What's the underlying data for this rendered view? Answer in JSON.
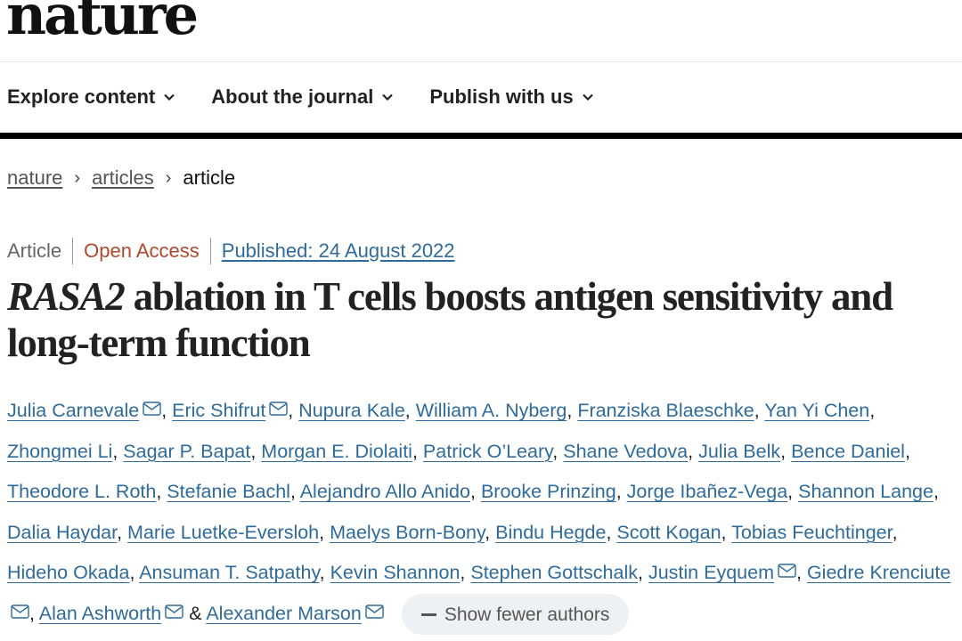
{
  "header": {
    "logo": "nature",
    "nav": [
      {
        "label": "Explore content",
        "icon": "chevron-down-icon"
      },
      {
        "label": "About the journal",
        "icon": "chevron-down-icon"
      },
      {
        "label": "Publish with us",
        "icon": "chevron-down-icon"
      }
    ]
  },
  "breadcrumb": [
    {
      "label": "nature",
      "link": true
    },
    {
      "label": "articles",
      "link": true
    },
    {
      "label": "article",
      "link": false
    }
  ],
  "article": {
    "type": "Article",
    "access": "Open Access",
    "published": "Published: 24 August 2022",
    "title_italic": "RASA2",
    "title_rest": " ablation in T cells boosts antigen sensitivity and long-term function",
    "authors": [
      {
        "name": "Julia Carnevale",
        "email": true
      },
      {
        "name": "Eric Shifrut",
        "email": true
      },
      {
        "name": "Nupura Kale",
        "email": false
      },
      {
        "name": "William A. Nyberg",
        "email": false
      },
      {
        "name": "Franziska Blaeschke",
        "email": false
      },
      {
        "name": "Yan Yi Chen",
        "email": false
      },
      {
        "name": "Zhongmei Li",
        "email": false
      },
      {
        "name": "Sagar P. Bapat",
        "email": false
      },
      {
        "name": "Morgan E. Diolaiti",
        "email": false
      },
      {
        "name": "Patrick O’Leary",
        "email": false
      },
      {
        "name": "Shane Vedova",
        "email": false
      },
      {
        "name": "Julia Belk",
        "email": false
      },
      {
        "name": "Bence Daniel",
        "email": false
      },
      {
        "name": "Theodore L. Roth",
        "email": false
      },
      {
        "name": "Stefanie Bachl",
        "email": false
      },
      {
        "name": "Alejandro Allo Anido",
        "email": false
      },
      {
        "name": "Brooke Prinzing",
        "email": false
      },
      {
        "name": "Jorge Ibañez-Vega",
        "email": false
      },
      {
        "name": "Shannon Lange",
        "email": false
      },
      {
        "name": "Dalia Haydar",
        "email": false
      },
      {
        "name": "Marie Luetke-Eversloh",
        "email": false
      },
      {
        "name": "Maelys Born-Bony",
        "email": false
      },
      {
        "name": "Bindu Hegde",
        "email": false
      },
      {
        "name": "Scott Kogan",
        "email": false
      },
      {
        "name": "Tobias Feuchtinger",
        "email": false
      },
      {
        "name": "Hideho Okada",
        "email": false
      },
      {
        "name": "Ansuman T. Satpathy",
        "email": false
      },
      {
        "name": "Kevin Shannon",
        "email": false
      },
      {
        "name": "Stephen Gottschalk",
        "email": false
      },
      {
        "name": "Justin Eyquem",
        "email": true
      },
      {
        "name": "Giedre Krenciute",
        "email": true
      },
      {
        "name": "Alan Ashworth",
        "email": true
      },
      {
        "name": "Alexander Marson",
        "email": true
      }
    ],
    "last_separator": " & ",
    "show_fewer_label": "Show fewer authors"
  },
  "colors": {
    "link": "#2f6b9a",
    "open_access": "#b0492e",
    "button_bg": "#eef1f4"
  }
}
